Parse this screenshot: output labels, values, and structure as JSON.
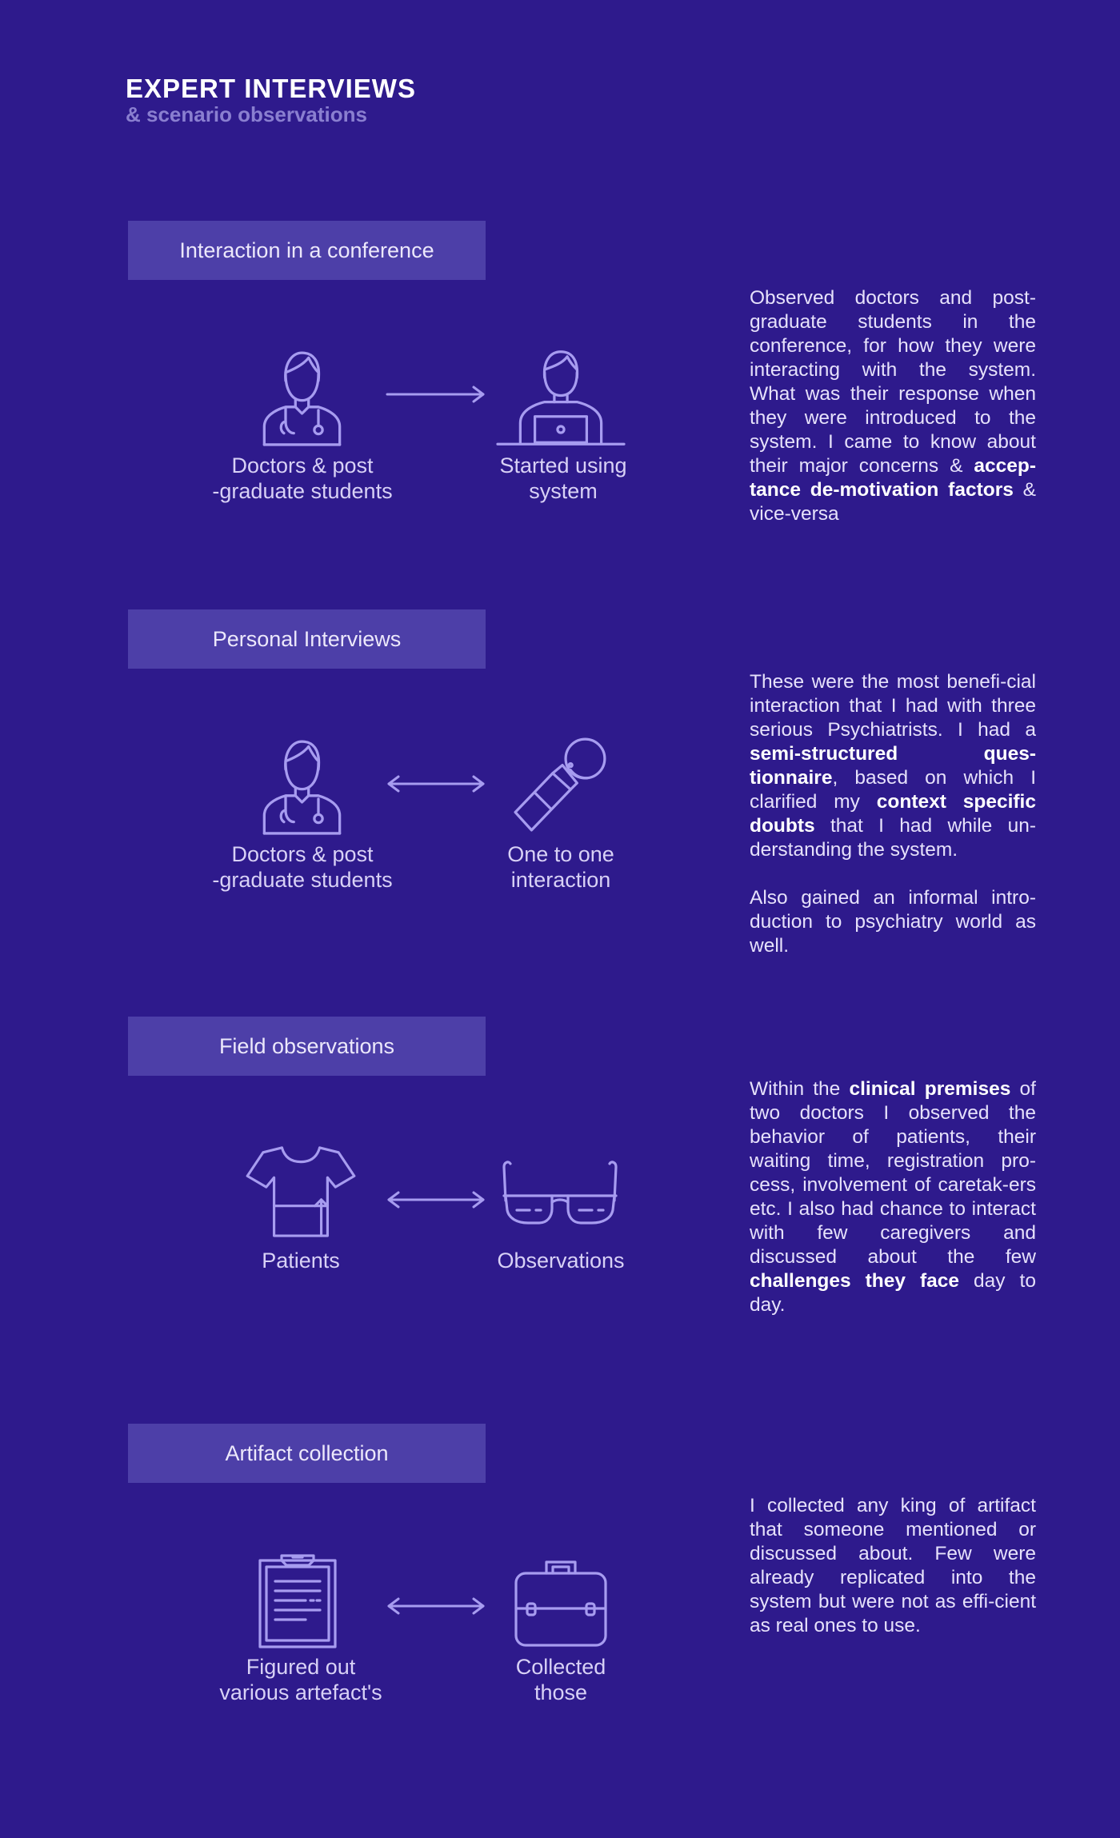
{
  "header": {
    "title": "EXPERT INTERVIEWS",
    "subtitle": "& scenario observations"
  },
  "sections": [
    {
      "label": "Interaction in a conference",
      "left_label_1": "Doctors & post",
      "left_label_2": "-graduate students",
      "right_label_1": "Started using",
      "right_label_2": "system",
      "left_icon": "doctor-icon",
      "right_icon": "laptop-user-icon",
      "arrow": "arrow-right",
      "desc": [
        {
          "t": "Observed doctors and post-graduate students in the conference, for how they were interacting with the system. What was their response when they were introduced to the system. I came to know about their major concerns & "
        },
        {
          "b": "accep-tance de-motivation factors"
        },
        {
          "t": " & vice-versa"
        }
      ]
    },
    {
      "label": "Personal Interviews",
      "left_label_1": "Doctors & post",
      "left_label_2": "-graduate students",
      "right_label_1": "One to one",
      "right_label_2": "interaction",
      "left_icon": "doctor-icon",
      "right_icon": "microphone-icon",
      "arrow": "arrow-both",
      "desc": [
        {
          "t": "These were the most benefi-cial interaction that I had with three serious Psychiatrists. I had a "
        },
        {
          "b": "semi-structured ques-tionnaire"
        },
        {
          "t": ", based on which I clarified my "
        },
        {
          "b": "context specific doubts"
        },
        {
          "t": " that I had while un-derstanding the system."
        }
      ],
      "desc2": "Also gained an informal intro-duction to psychiatry world as well."
    },
    {
      "label": "Field observations",
      "left_label_1": "Patients",
      "left_label_2": "",
      "right_label_1": "Observations",
      "right_label_2": "",
      "left_icon": "shirt-icon",
      "right_icon": "glasses-icon",
      "arrow": "arrow-both",
      "desc": [
        {
          "t": "Within the "
        },
        {
          "b": "clinical premises"
        },
        {
          "t": " of two doctors I observed the behavior of patients, their waiting time, registration pro-cess, involvement of caretak-ers etc. I also had chance to interact with few caregivers and discussed about the few "
        },
        {
          "b": "challenges they face"
        },
        {
          "t": " day to day."
        }
      ]
    },
    {
      "label": "Artifact collection",
      "left_label_1": "Figured out",
      "left_label_2": "various artefact's",
      "right_label_1": "Collected",
      "right_label_2": "those",
      "left_icon": "clipboard-icon",
      "right_icon": "briefcase-icon",
      "arrow": "arrow-both",
      "desc": [
        {
          "t": "I collected any king of artifact that someone mentioned or discussed about. Few were already replicated into the system but were not as effi-cient as real ones to use."
        }
      ]
    }
  ]
}
